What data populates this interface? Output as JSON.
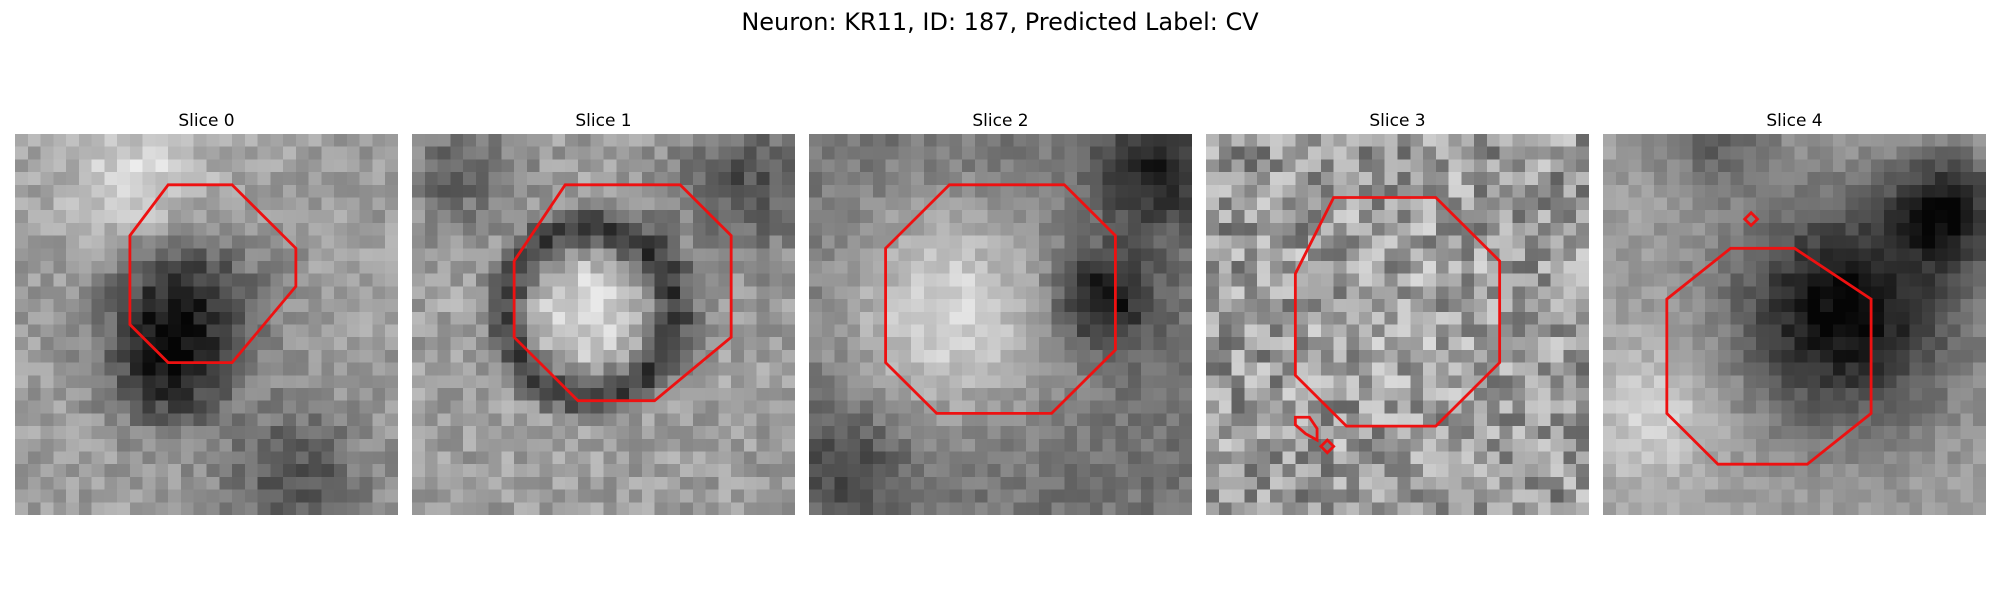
{
  "figure": {
    "title": "Neuron: KR11, ID: 187, Predicted Label: CV"
  },
  "panels": [
    {
      "title": "Slice 0",
      "contour_color": "#ee1111"
    },
    {
      "title": "Slice 1",
      "contour_color": "#ee1111"
    },
    {
      "title": "Slice 2",
      "contour_color": "#ee1111"
    },
    {
      "title": "Slice 3",
      "contour_color": "#ee1111"
    },
    {
      "title": "Slice 4",
      "contour_color": "#ee1111"
    }
  ]
}
